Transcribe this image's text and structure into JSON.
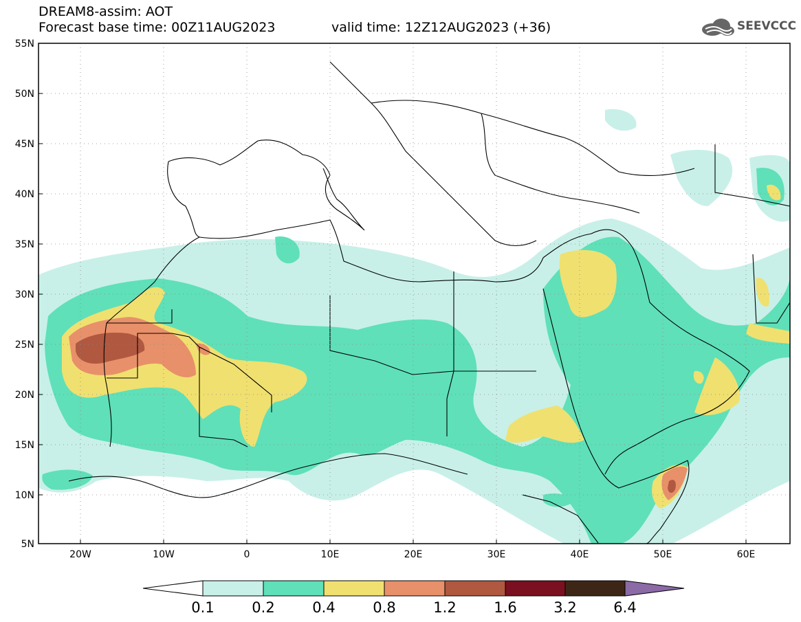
{
  "header": {
    "title": "DREAM8-assim: AOT",
    "base_time": "Forecast base time: 00Z11AUG2023",
    "valid_time": "valid time: 12Z12AUG2023 (+36)"
  },
  "logo": {
    "text": "SEEVCCC",
    "icon": "cloud-icon"
  },
  "map": {
    "lat_ticks": [
      "55N",
      "50N",
      "45N",
      "40N",
      "35N",
      "30N",
      "25N",
      "20N",
      "15N",
      "10N",
      "5N"
    ],
    "lon_ticks": [
      "20W",
      "10W",
      "0",
      "10E",
      "20E",
      "30E",
      "40E",
      "50E",
      "60E"
    ],
    "extent": {
      "lon_min": -25,
      "lon_max": 65,
      "lat_min": 5,
      "lat_max": 55
    },
    "variable": "AOT",
    "grid": "dotted"
  },
  "colorbar": {
    "labels": [
      "0.1",
      "0.2",
      "0.4",
      "0.8",
      "1.2",
      "1.6",
      "3.2",
      "6.4"
    ],
    "colors": [
      "#c8f0e8",
      "#5fe0b8",
      "#f0e070",
      "#e8906a",
      "#b05840",
      "#7a1020",
      "#3e2616",
      "#8b6aa6"
    ],
    "under_color": "#ffffff"
  }
}
